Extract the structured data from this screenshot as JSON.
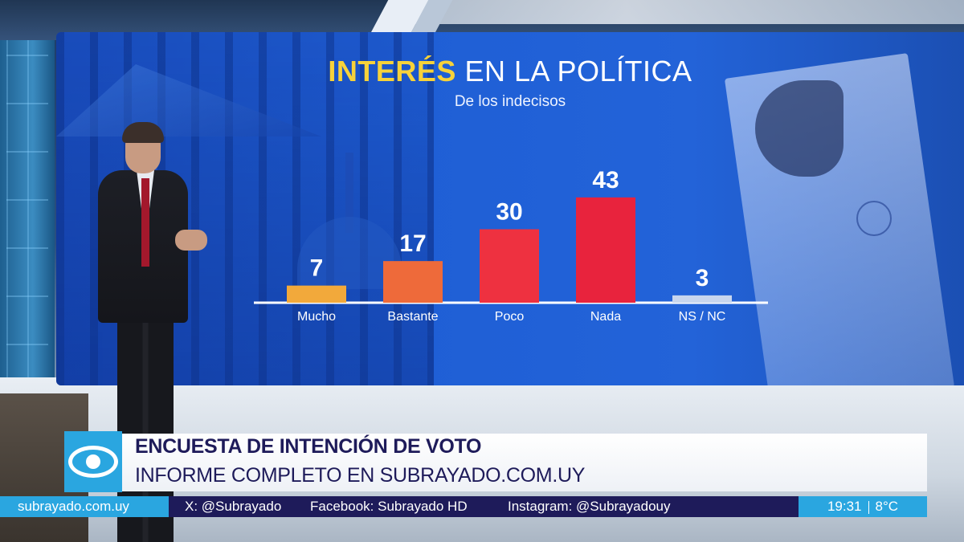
{
  "chart_data": {
    "type": "bar",
    "title_highlight": "INTERÉS",
    "title_rest": " EN LA POLÍTICA",
    "subtitle": "De los indecisos",
    "categories": [
      "Mucho",
      "Bastante",
      "Poco",
      "Nada",
      "NS / NC"
    ],
    "values": [
      7,
      17,
      30,
      43,
      3
    ],
    "bar_colors": [
      "#f2a93b",
      "#ee6a3a",
      "#ee3140",
      "#e8233d",
      "#c8d6ee"
    ],
    "value_labels": [
      "7",
      "17",
      "30",
      "43",
      "3"
    ],
    "xlabel": "",
    "ylabel": "",
    "grid": false,
    "legend": "none"
  },
  "lower_third": {
    "headline": "ENCUESTA DE INTENCIÓN DE VOTO",
    "subline": "INFORME COMPLETO EN SUBRAYADO.COM.UY"
  },
  "ticker": {
    "site": "subrayado.com.uy",
    "x_handle": "X: @Subrayado",
    "facebook": "Facebook: Subrayado HD",
    "instagram": "Instagram: @Subrayadouy",
    "time": "19:31",
    "temperature": "8°C"
  },
  "icons": {
    "channel_logo": "eye-logo-icon"
  },
  "colors": {
    "title_highlight": "#f7d23a",
    "ticker_bg": "#1e1b5a",
    "brand_blue": "#2aa6e0"
  }
}
